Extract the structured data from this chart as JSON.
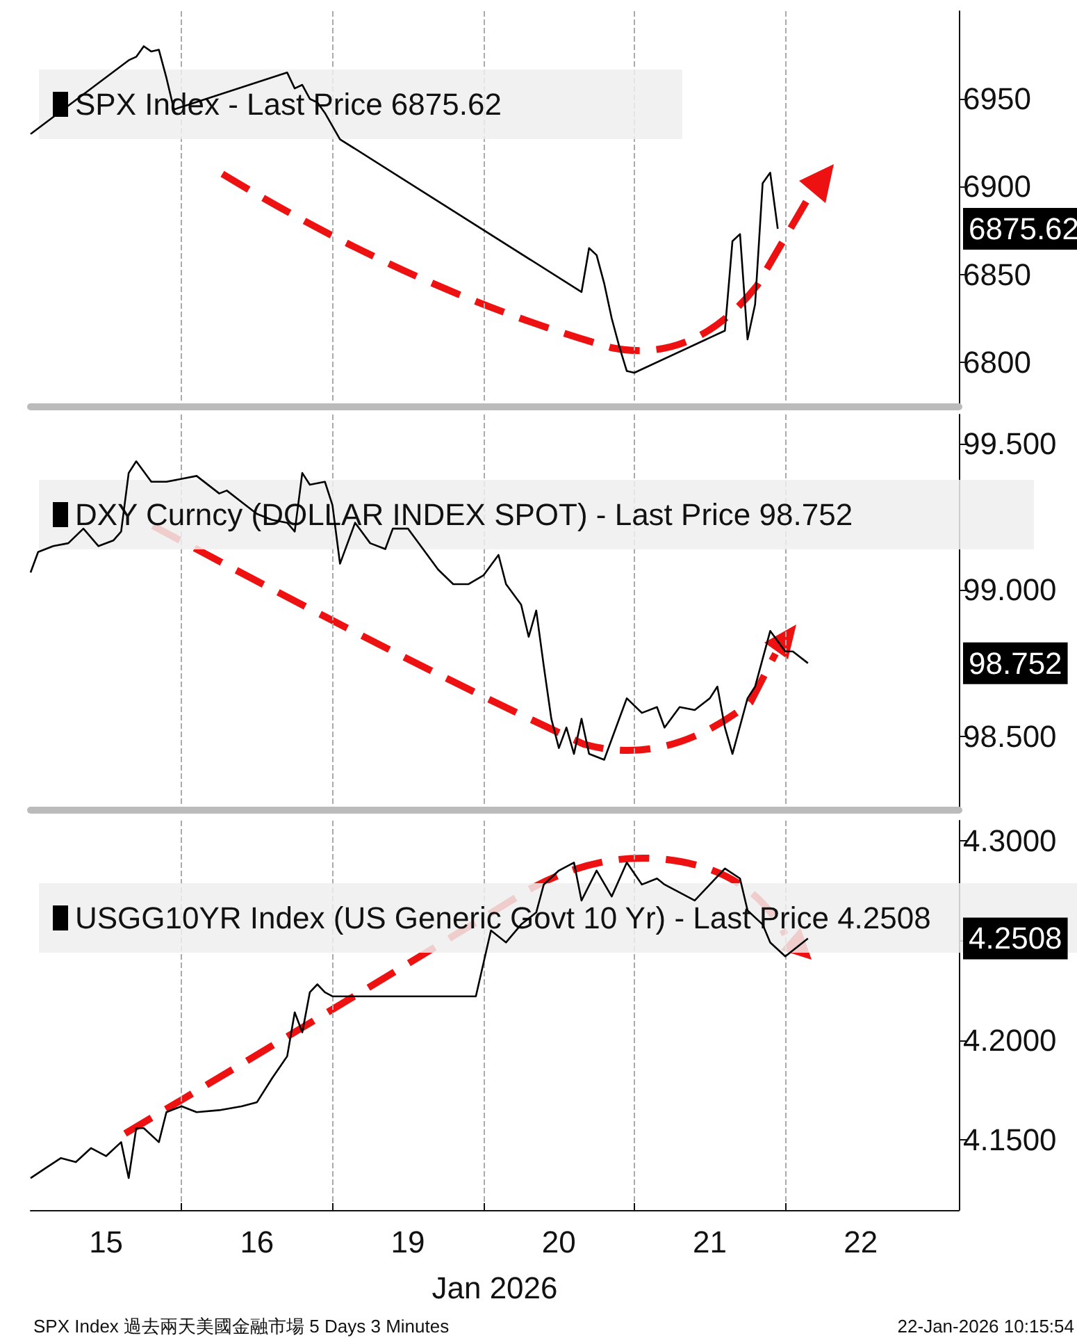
{
  "chart_data": [
    {
      "type": "line",
      "categories": [
        null,
        null,
        null,
        null,
        null,
        null,
        null,
        null,
        null,
        null,
        "15",
        null,
        null,
        null,
        null,
        null,
        null,
        null,
        null,
        null,
        null,
        null,
        null,
        null,
        null,
        null,
        null,
        null,
        null,
        null,
        "16",
        null,
        null,
        null,
        null,
        null,
        null,
        null,
        null,
        null,
        null,
        null,
        null,
        null,
        null,
        null,
        null,
        null,
        null,
        null,
        "19",
        null,
        null,
        null,
        null,
        null,
        null,
        null,
        null,
        null,
        null,
        null,
        null,
        null,
        null,
        null,
        null,
        null,
        null,
        null,
        "20",
        null,
        null,
        null,
        null,
        null,
        null,
        null,
        null,
        null,
        null,
        null,
        null,
        null,
        null,
        null,
        null,
        null,
        null,
        null,
        "21",
        null,
        null,
        null,
        null,
        null,
        null,
        null,
        null,
        null,
        null,
        null,
        null,
        null,
        null,
        null,
        null,
        null,
        null,
        null,
        "22",
        null,
        null,
        null,
        null,
        null,
        null,
        null,
        null,
        null,
        null,
        null,
        null,
        null
      ],
      "ylim": [
        6775,
        7000
      ],
      "yticks": [
        6800,
        6850,
        6900,
        6950
      ],
      "tick_labels": "y",
      "legend": "top left",
      "marker": "none",
      "line_style": "solid",
      "grid": "x",
      "annotations": [
        "6875.62"
      ],
      "series": [
        {
          "name": "SPX Index - Last Price 6875.62",
          "color": "#000000",
          "values": [
            6930,
            null,
            null,
            null,
            null,
            null,
            null,
            null,
            null,
            null,
            null,
            null,
            null,
            6972,
            6974,
            6980,
            6977,
            6978,
            6962,
            6944,
            null,
            null,
            null,
            null,
            null,
            null,
            null,
            null,
            null,
            null,
            null,
            null,
            null,
            null,
            6965,
            6956,
            6958,
            6950,
            6948,
            6942,
            null,
            6927,
            null,
            null,
            null,
            null,
            null,
            null,
            null,
            null,
            null,
            null,
            null,
            null,
            null,
            null,
            null,
            null,
            null,
            null,
            null,
            null,
            null,
            null,
            null,
            null,
            null,
            null,
            null,
            null,
            null,
            null,
            null,
            6840,
            6865,
            6861,
            6845,
            6825,
            6809,
            6795,
            6794,
            null,
            null,
            null,
            null,
            null,
            null,
            null,
            null,
            null,
            null,
            null,
            6818,
            6869,
            6873,
            6813,
            6833,
            6902,
            6908,
            6876,
            null,
            null,
            null,
            null,
            null,
            null,
            null,
            null,
            null,
            null,
            null,
            null,
            null,
            null,
            null,
            null,
            null,
            null,
            null,
            null,
            null,
            null,
            null,
            null
          ]
        }
      ]
    },
    {
      "type": "line",
      "categories": [
        null,
        null,
        null,
        null,
        null,
        null,
        null,
        null,
        null,
        null,
        "15",
        null,
        null,
        null,
        null,
        null,
        null,
        null,
        null,
        null,
        null,
        null,
        null,
        null,
        null,
        null,
        null,
        null,
        null,
        null,
        "16",
        null,
        null,
        null,
        null,
        null,
        null,
        null,
        null,
        null,
        null,
        null,
        null,
        null,
        null,
        null,
        null,
        null,
        null,
        null,
        "19",
        null,
        null,
        null,
        null,
        null,
        null,
        null,
        null,
        null,
        null,
        null,
        null,
        null,
        null,
        null,
        null,
        null,
        null,
        null,
        "20",
        null,
        null,
        null,
        null,
        null,
        null,
        null,
        null,
        null,
        null,
        null,
        null,
        null,
        null,
        null,
        null,
        null,
        null,
        null,
        "21",
        null,
        null,
        null,
        null,
        null,
        null,
        null,
        null,
        null,
        null,
        null,
        null,
        null,
        null,
        null,
        null,
        null,
        null,
        null,
        "22",
        null,
        null,
        null,
        null,
        null,
        null,
        null,
        null,
        null,
        null,
        null,
        null,
        null
      ],
      "ylim": [
        98.25,
        99.6
      ],
      "yticks": [
        {
          "value": 98.5,
          "label": "98.500"
        },
        {
          "value": 99,
          "label": "99.000"
        },
        {
          "value": 99.5,
          "label": "99.500"
        }
      ],
      "tick_labels": "y",
      "legend": "top left",
      "marker": "none",
      "line_style": "solid",
      "grid": "x",
      "annotations": [
        "98.752"
      ],
      "series": [
        {
          "name": "DXY Curncy (DOLLAR INDEX SPOT) - Last Price 98.752",
          "color": "#000000",
          "values": [
            99.06,
            99.13,
            null,
            99.15,
            null,
            99.16,
            null,
            99.21,
            null,
            99.15,
            null,
            99.17,
            99.2,
            99.4,
            99.44,
            null,
            99.37,
            null,
            99.37,
            null,
            null,
            null,
            99.39,
            null,
            null,
            99.33,
            99.34,
            null,
            99.3,
            null,
            99.26,
            null,
            99.24,
            null,
            99.23,
            99.2,
            99.4,
            99.36,
            null,
            99.37,
            99.29,
            99.09,
            null,
            99.23,
            null,
            99.16,
            null,
            99.14,
            99.21,
            null,
            99.21,
            null,
            99.14,
            null,
            99.07,
            null,
            99.02,
            null,
            99.02,
            null,
            99.05,
            null,
            99.12,
            99.02,
            null,
            98.95,
            98.84,
            98.93,
            98.74,
            98.56,
            98.46,
            98.53,
            98.44,
            98.56,
            98.44,
            null,
            98.42,
            null,
            98.56,
            98.63,
            null,
            98.58,
            null,
            98.6,
            98.53,
            null,
            98.6,
            null,
            98.59,
            null,
            98.63,
            98.67,
            98.53,
            98.44,
            null,
            98.63,
            98.67,
            null,
            98.86,
            null,
            98.79,
            98.79,
            null,
            98.75,
            null,
            null,
            null,
            null,
            null,
            null,
            null,
            null,
            null,
            null,
            null,
            null,
            null,
            null,
            null,
            null,
            null,
            null,
            null,
            null
          ]
        }
      ]
    },
    {
      "type": "line",
      "categories": [
        null,
        null,
        null,
        null,
        null,
        null,
        null,
        null,
        null,
        null,
        "15",
        null,
        null,
        null,
        null,
        null,
        null,
        null,
        null,
        null,
        null,
        null,
        null,
        null,
        null,
        null,
        null,
        null,
        null,
        null,
        "16",
        null,
        null,
        null,
        null,
        null,
        null,
        null,
        null,
        null,
        null,
        null,
        null,
        null,
        null,
        null,
        null,
        null,
        null,
        null,
        "19",
        null,
        null,
        null,
        null,
        null,
        null,
        null,
        null,
        null,
        null,
        null,
        null,
        null,
        null,
        null,
        null,
        null,
        null,
        null,
        "20",
        null,
        null,
        null,
        null,
        null,
        null,
        null,
        null,
        null,
        null,
        null,
        null,
        null,
        null,
        null,
        null,
        null,
        null,
        null,
        "21",
        null,
        null,
        null,
        null,
        null,
        null,
        null,
        null,
        null,
        null,
        null,
        null,
        null,
        null,
        null,
        null,
        null,
        null,
        null,
        "22",
        null,
        null,
        null,
        null,
        null,
        null,
        null,
        null,
        null,
        null,
        null,
        null,
        null
      ],
      "ylim": [
        4.115,
        4.31
      ],
      "yticks": [
        {
          "value": 4.15,
          "label": "4.1500"
        },
        {
          "value": 4.2,
          "label": "4.2000"
        },
        {
          "value": 4.25,
          "label": null
        },
        {
          "value": 4.3,
          "label": "4.3000"
        }
      ],
      "xlabel": "Jan 2026",
      "legend": "top left",
      "marker": "none",
      "line_style": "solid",
      "grid": "x",
      "annotations": [
        "4.2508",
        "SPX Index 過去兩天美國金融市場 5 Days 3 Minutes",
        "22-Jan-2026 10:15:54"
      ],
      "series": [
        {
          "name": "USGG10YR Index (US Generic Govt 10 Yr) - Last Price 4.2508",
          "color": "#000000",
          "values": [
            4.131,
            null,
            4.136,
            null,
            4.141,
            null,
            4.139,
            null,
            4.146,
            null,
            4.142,
            null,
            4.149,
            4.131,
            4.156,
            4.156,
            null,
            4.149,
            4.164,
            null,
            4.167,
            null,
            4.164,
            null,
            null,
            4.165,
            null,
            null,
            4.167,
            null,
            4.169,
            null,
            4.181,
            null,
            4.192,
            4.214,
            4.204,
            4.224,
            4.228,
            4.224,
            4.222,
            null,
            null,
            null,
            null,
            null,
            null,
            null,
            null,
            null,
            null,
            null,
            null,
            null,
            null,
            null,
            null,
            null,
            null,
            4.222,
            null,
            4.255,
            null,
            4.249,
            null,
            4.258,
            null,
            4.264,
            4.278,
            null,
            4.285,
            null,
            4.289,
            4.27,
            null,
            4.285,
            null,
            4.272,
            null,
            4.289,
            null,
            4.278,
            null,
            4.281,
            4.278,
            null,
            4.274,
            null,
            4.27,
            null,
            4.278,
            null,
            4.286,
            null,
            4.281,
            4.265,
            null,
            4.258,
            4.249,
            null,
            4.242,
            null,
            null,
            4.251,
            null,
            null,
            null,
            null,
            null,
            null,
            null,
            null,
            null,
            null,
            null,
            null,
            null,
            null,
            null,
            null,
            null,
            null,
            null,
            null
          ]
        }
      ]
    }
  ]
}
